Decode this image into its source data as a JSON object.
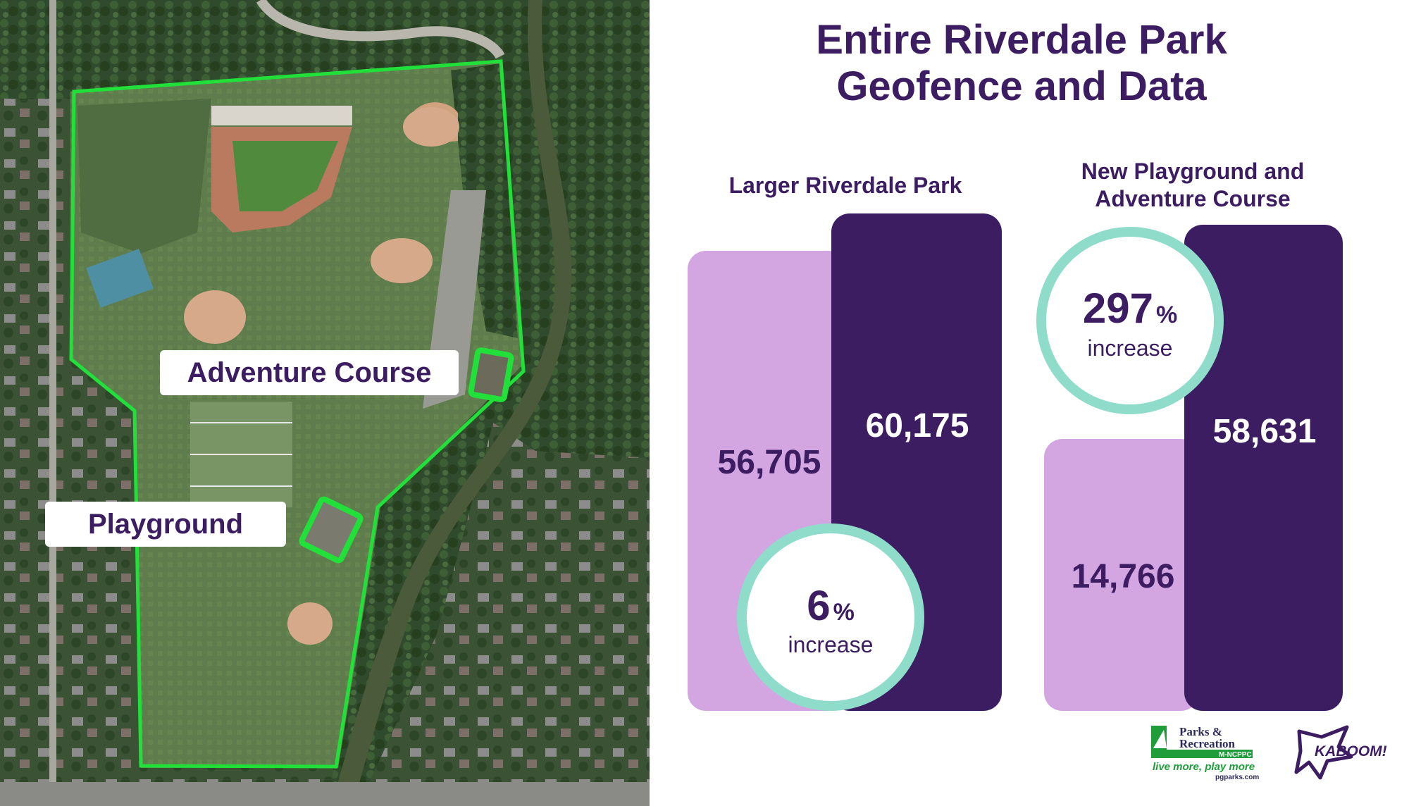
{
  "title_lines": [
    "Entire Riverdale Park",
    "Geofence and Data"
  ],
  "map": {
    "labels": {
      "adventure": "Adventure Course",
      "playground": "Playground"
    }
  },
  "colors": {
    "dark_purple": "#3c1d62",
    "light_purple": "#d3a6e2",
    "teal": "#8fdcca",
    "geofence": "#22e03a",
    "parks_green": "#1f9d3a"
  },
  "chart_data": [
    {
      "type": "bar",
      "title_lines": [
        "Larger Riverdale Park"
      ],
      "values": [
        56705,
        60175
      ],
      "value_labels": [
        "56,705",
        "60,175"
      ],
      "change": {
        "value": "6",
        "unit": "%",
        "label": "increase"
      }
    },
    {
      "type": "bar",
      "title_lines": [
        "New Playground and",
        "Adventure Course"
      ],
      "values": [
        14766,
        58631
      ],
      "value_labels": [
        "14,766",
        "58,631"
      ],
      "change": {
        "value": "297",
        "unit": "%",
        "label": "increase"
      }
    }
  ],
  "logos": {
    "parks": {
      "line1": "Parks &",
      "line2": "Recreation",
      "line3": "M-NCPPC",
      "tagline": "live more, play more",
      "url": "pgparks.com"
    },
    "kaboom": "KABOOM!"
  }
}
